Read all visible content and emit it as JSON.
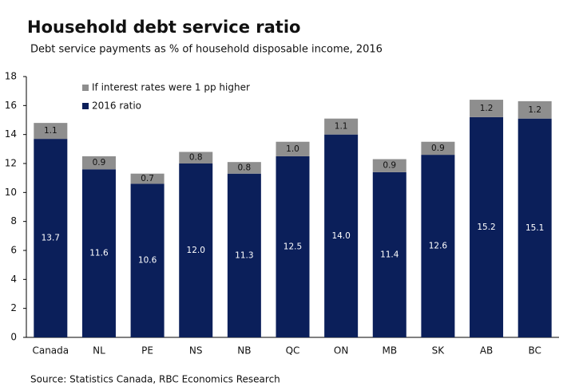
{
  "chart_data": {
    "type": "stacked_bar",
    "title": "Household debt service ratio",
    "subtitle": "Debt service payments as % of household disposable income, 2016",
    "source": "Source: Statistics Canada, RBC Economics Research",
    "categories": [
      "Canada",
      "NL",
      "PE",
      "NS",
      "NB",
      "QC",
      "ON",
      "MB",
      "SK",
      "AB",
      "BC"
    ],
    "series": [
      {
        "name": "2016 ratio",
        "color": "#0b1f5a",
        "values": [
          13.7,
          11.6,
          10.6,
          12.0,
          11.3,
          12.5,
          14.0,
          11.4,
          12.6,
          15.2,
          15.1
        ],
        "value_labels": [
          "13.7",
          "11.6",
          "10.6",
          "12.0",
          "11.3",
          "12.5",
          "14.0",
          "11.4",
          "12.6",
          "15.2",
          "15.1"
        ]
      },
      {
        "name": "If interest rates were 1 pp higher",
        "color": "#8e8e8e",
        "values": [
          1.1,
          0.9,
          0.7,
          0.8,
          0.8,
          1.0,
          1.1,
          0.9,
          0.9,
          1.2,
          1.2
        ],
        "value_labels": [
          "1.1",
          "0.9",
          "0.7",
          "0.8",
          "0.8",
          "1.0",
          "1.1",
          "0.9",
          "0.9",
          "1.2",
          "1.2"
        ]
      }
    ],
    "ylim": [
      0,
      18
    ],
    "yticks": [
      0,
      2,
      4,
      6,
      8,
      10,
      12,
      14,
      16,
      18
    ],
    "legend": "upper left"
  }
}
